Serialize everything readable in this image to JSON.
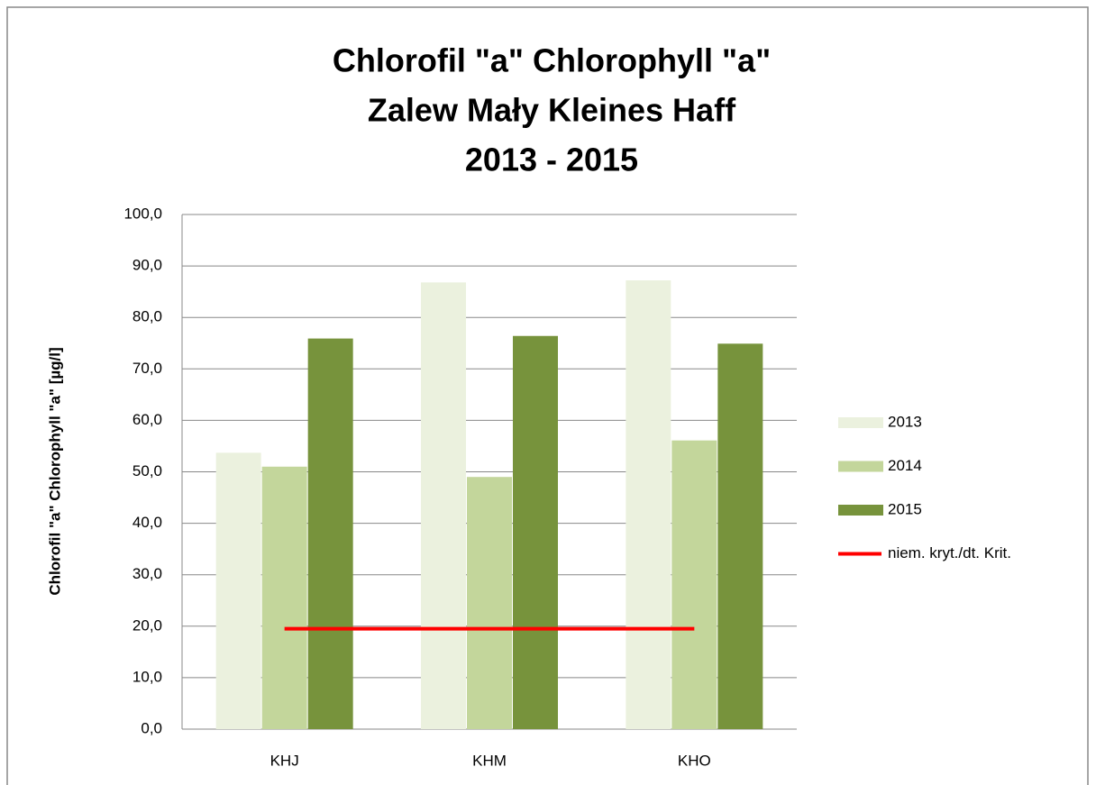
{
  "chart_data": {
    "type": "bar",
    "title": [
      "Chlorofil \"a\"  Chlorophyll \"a\"",
      "Zalew Mały  Kleines Haff",
      "2013 - 2015"
    ],
    "y_label": "Chlorofil \"a\"  Chlorophyll \"a\" [µg/l]",
    "categories": [
      "KHJ",
      "KHM",
      "KHO"
    ],
    "series": [
      {
        "name": "2013",
        "color": "#ebf1de",
        "values": [
          53.7,
          86.8,
          87.2
        ]
      },
      {
        "name": "2014",
        "color": "#c3d69b",
        "values": [
          51.0,
          49.0,
          56.1
        ]
      },
      {
        "name": "2015",
        "color": "#77933c",
        "values": [
          75.9,
          76.4,
          74.9
        ]
      },
      {
        "name": "niem. kryt./dt. Krit.",
        "color": "#ff0000",
        "type": "line",
        "values": [
          19.5,
          19.5,
          19.5
        ]
      }
    ],
    "ylim": [
      0,
      100
    ],
    "yticks": [
      {
        "value": 0,
        "label": "0,0"
      },
      {
        "value": 10,
        "label": "10,0"
      },
      {
        "value": 20,
        "label": "20,0"
      },
      {
        "value": 30,
        "label": "30,0"
      },
      {
        "value": 40,
        "label": "40,0"
      },
      {
        "value": 50,
        "label": "50,0"
      },
      {
        "value": 60,
        "label": "60,0"
      },
      {
        "value": 70,
        "label": "70,0"
      },
      {
        "value": 80,
        "label": "80,0"
      },
      {
        "value": 90,
        "label": "90,0"
      },
      {
        "value": 100,
        "label": "100,0"
      }
    ],
    "grid": true,
    "legend": "right"
  }
}
